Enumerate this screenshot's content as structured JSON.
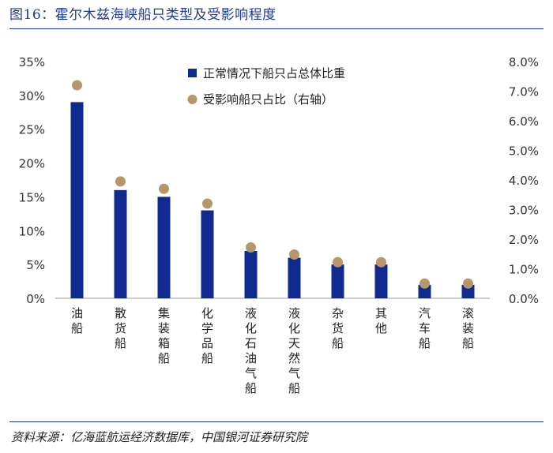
{
  "header": {
    "title": "图16：霍尔木兹海峡船只类型及受影响程度"
  },
  "footer": {
    "source": "资料来源：亿海蓝航运经济数据库，中国银河证券研究院"
  },
  "colors": {
    "bar": "#102a8f",
    "dot": "#b5976a",
    "accent": "#1f3a93",
    "axis": "#999999"
  },
  "chart_data": {
    "type": "bar",
    "categories": [
      "油船",
      "散货船",
      "集装箱船",
      "化学品船",
      "液化石油气船",
      "液化天然气船",
      "杂货船",
      "其他",
      "汽车船",
      "滚装船"
    ],
    "series": [
      {
        "name": "正常情况下船只占总体比重",
        "type": "bar",
        "axis": "left",
        "values": [
          29,
          16,
          15,
          13,
          7,
          6,
          5,
          5,
          2,
          2
        ]
      },
      {
        "name": "受影响船只占比（右轴）",
        "type": "scatter",
        "axis": "right",
        "values": [
          7.2,
          3.95,
          3.7,
          3.2,
          1.72,
          1.48,
          1.22,
          1.22,
          0.5,
          0.5
        ]
      }
    ],
    "ylim": [
      0,
      35
    ],
    "yticks": [
      "0%",
      "5%",
      "10%",
      "15%",
      "20%",
      "25%",
      "30%",
      "35%"
    ],
    "y2lim": [
      0,
      8
    ],
    "y2ticks": [
      "0.0%",
      "1.0%",
      "2.0%",
      "3.0%",
      "4.0%",
      "5.0%",
      "6.0%",
      "7.0%",
      "8.0%"
    ],
    "legend": "top-center",
    "grid": false
  }
}
